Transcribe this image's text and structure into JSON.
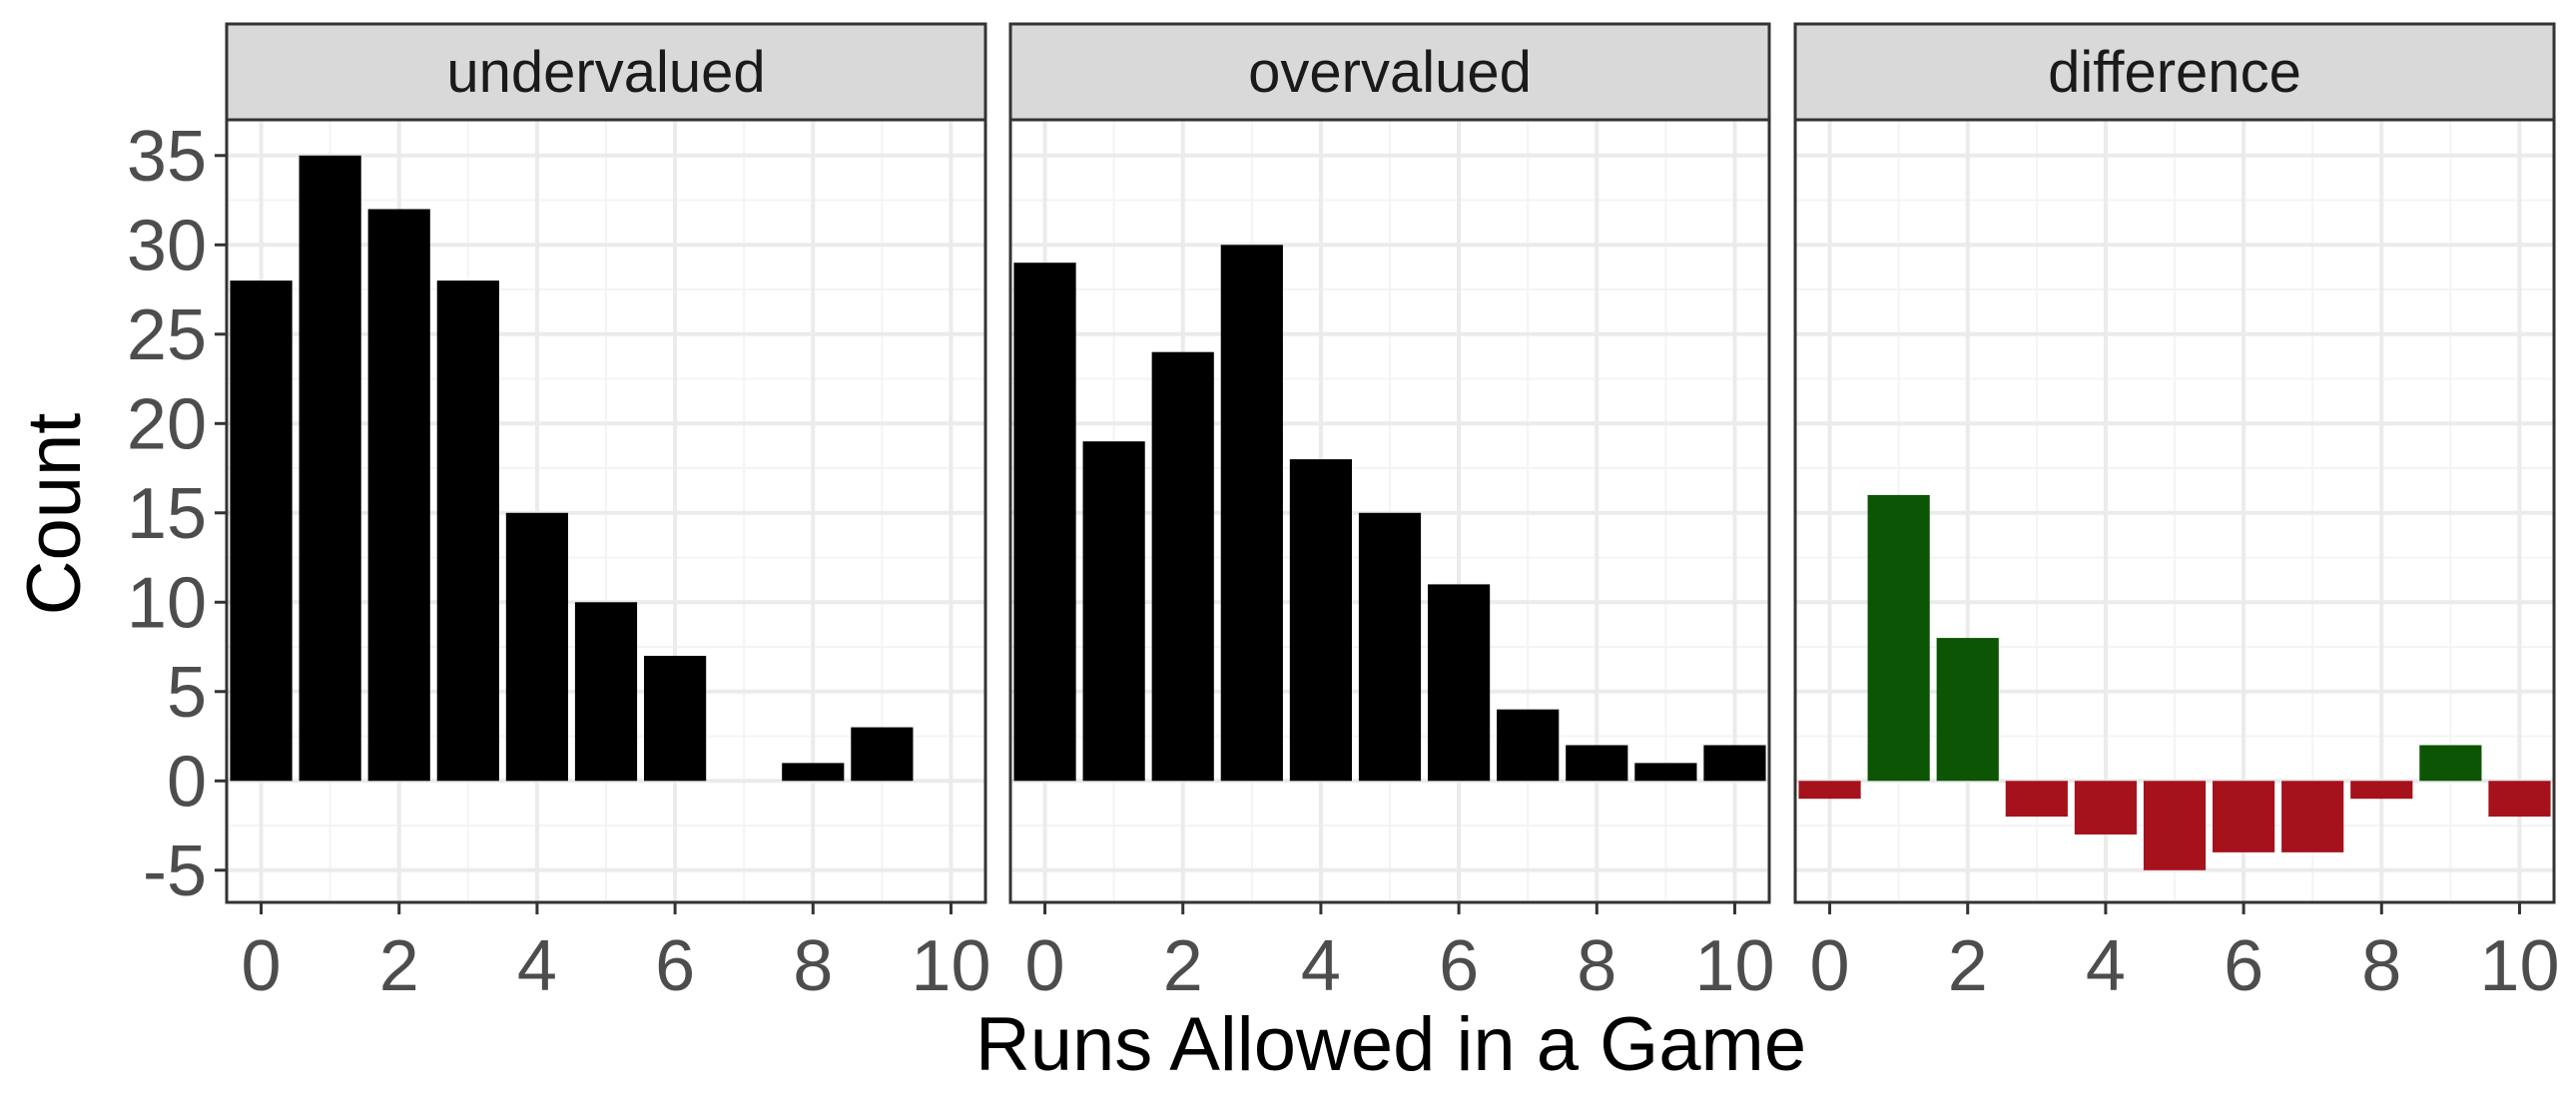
{
  "chart_data": {
    "type": "bar",
    "xlabel": "Runs Allowed in a Game",
    "ylabel": "Count",
    "xlim": [
      -0.5,
      10.5
    ],
    "ylim": [
      -6.8,
      37
    ],
    "x_ticks": [
      0,
      2,
      4,
      6,
      8,
      10
    ],
    "y_ticks": [
      -5,
      0,
      5,
      10,
      15,
      20,
      25,
      30,
      35
    ],
    "grid": true,
    "theme": "bw",
    "colors": {
      "bar": "#000000",
      "positive": "#0c5504",
      "negative": "#a5121c",
      "strip_bg": "#d9d9d9",
      "grid_major": "#ebebeb",
      "grid_minor": "#f4f4f4"
    },
    "panels": [
      {
        "title": "undervalued",
        "x": [
          0,
          1,
          2,
          3,
          4,
          5,
          6,
          8,
          9
        ],
        "values": [
          28,
          35,
          32,
          28,
          15,
          10,
          7,
          1,
          3
        ]
      },
      {
        "title": "overvalued",
        "x": [
          0,
          1,
          2,
          3,
          4,
          5,
          6,
          7,
          8,
          9,
          10
        ],
        "values": [
          29,
          19,
          24,
          30,
          18,
          15,
          11,
          4,
          2,
          1,
          2
        ]
      },
      {
        "title": "difference",
        "x": [
          0,
          1,
          2,
          3,
          4,
          5,
          6,
          7,
          8,
          9,
          10
        ],
        "values": [
          -1,
          16,
          8,
          -2,
          -3,
          -5,
          -4,
          -4,
          -1,
          2,
          -2
        ]
      }
    ]
  }
}
